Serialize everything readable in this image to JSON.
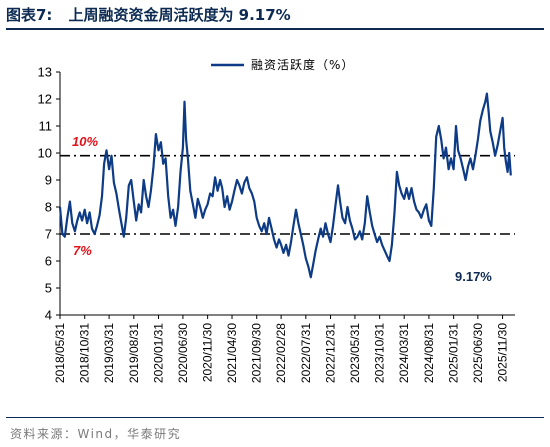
{
  "figure": {
    "number": "图表7:",
    "title": "上周融资资金周活跃度为 9.17%",
    "source": "资料来源：Wind，华泰研究"
  },
  "chart_data": {
    "type": "line",
    "title": "",
    "xlabel": "",
    "ylabel": "",
    "ylim": [
      4,
      13
    ],
    "yticks": [
      4,
      5,
      6,
      7,
      8,
      9,
      10,
      11,
      12,
      13
    ],
    "xticks": [
      "2018/05/31",
      "2018/10/31",
      "2019/03/31",
      "2019/08/31",
      "2020/01/31",
      "2020/06/30",
      "2020/11/30",
      "2021/04/30",
      "2021/09/30",
      "2022/02/28",
      "2022/07/31",
      "2022/12/31",
      "2023/05/31",
      "2023/10/31",
      "2024/03/31",
      "2024/08/31",
      "2025/01/31",
      "2025/06/30",
      "2025/11/30"
    ],
    "grid": false,
    "legend": "top-center",
    "series": [
      {
        "name": "融资活跃度（%）",
        "color": "#0d3b85",
        "points": [
          [
            "2018/05/31",
            8.0
          ],
          [
            "2018/06/15",
            7.0
          ],
          [
            "2018/06/30",
            6.9
          ],
          [
            "2018/07/15",
            7.6
          ],
          [
            "2018/07/31",
            8.2
          ],
          [
            "2018/08/15",
            7.4
          ],
          [
            "2018/08/31",
            7.1
          ],
          [
            "2018/09/15",
            7.5
          ],
          [
            "2018/09/30",
            7.8
          ],
          [
            "2018/10/15",
            7.5
          ],
          [
            "2018/10/31",
            7.9
          ],
          [
            "2018/11/15",
            7.4
          ],
          [
            "2018/11/30",
            7.8
          ],
          [
            "2018/12/15",
            7.2
          ],
          [
            "2018/12/31",
            7.0
          ],
          [
            "2019/01/15",
            7.3
          ],
          [
            "2019/01/31",
            7.7
          ],
          [
            "2019/02/15",
            8.4
          ],
          [
            "2019/02/28",
            9.6
          ],
          [
            "2019/03/15",
            10.1
          ],
          [
            "2019/03/31",
            9.4
          ],
          [
            "2019/04/15",
            9.9
          ],
          [
            "2019/04/30",
            8.9
          ],
          [
            "2019/05/15",
            8.5
          ],
          [
            "2019/05/31",
            7.9
          ],
          [
            "2019/06/15",
            7.4
          ],
          [
            "2019/06/30",
            6.9
          ],
          [
            "2019/07/15",
            7.6
          ],
          [
            "2019/07/31",
            8.8
          ],
          [
            "2019/08/15",
            9.0
          ],
          [
            "2019/08/31",
            8.2
          ],
          [
            "2019/09/15",
            7.5
          ],
          [
            "2019/09/30",
            8.1
          ],
          [
            "2019/10/15",
            7.8
          ],
          [
            "2019/10/31",
            9.0
          ],
          [
            "2019/11/15",
            8.4
          ],
          [
            "2019/11/30",
            8.0
          ],
          [
            "2019/12/15",
            8.6
          ],
          [
            "2019/12/31",
            9.5
          ],
          [
            "2020/01/15",
            10.7
          ],
          [
            "2020/01/31",
            10.1
          ],
          [
            "2020/02/15",
            10.4
          ],
          [
            "2020/02/29",
            9.6
          ],
          [
            "2020/03/15",
            9.8
          ],
          [
            "2020/03/31",
            8.4
          ],
          [
            "2020/04/15",
            7.6
          ],
          [
            "2020/04/30",
            7.9
          ],
          [
            "2020/05/15",
            7.3
          ],
          [
            "2020/05/31",
            8.0
          ],
          [
            "2020/06/15",
            9.3
          ],
          [
            "2020/06/30",
            10.2
          ],
          [
            "2020/07/10",
            11.9
          ],
          [
            "2020/07/20",
            10.5
          ],
          [
            "2020/07/31",
            9.8
          ],
          [
            "2020/08/15",
            8.6
          ],
          [
            "2020/08/31",
            8.1
          ],
          [
            "2020/09/15",
            7.6
          ],
          [
            "2020/09/30",
            8.3
          ],
          [
            "2020/10/15",
            8.0
          ],
          [
            "2020/10/31",
            7.6
          ],
          [
            "2020/11/15",
            7.9
          ],
          [
            "2020/11/30",
            8.1
          ],
          [
            "2020/12/15",
            8.5
          ],
          [
            "2020/12/31",
            8.4
          ],
          [
            "2021/01/15",
            9.1
          ],
          [
            "2021/01/31",
            8.6
          ],
          [
            "2021/02/15",
            9.0
          ],
          [
            "2021/02/28",
            8.7
          ],
          [
            "2021/03/15",
            8.0
          ],
          [
            "2021/03/31",
            8.4
          ],
          [
            "2021/04/15",
            7.9
          ],
          [
            "2021/04/30",
            8.2
          ],
          [
            "2021/05/15",
            8.6
          ],
          [
            "2021/05/31",
            9.0
          ],
          [
            "2021/06/15",
            8.8
          ],
          [
            "2021/06/30",
            8.5
          ],
          [
            "2021/07/15",
            8.9
          ],
          [
            "2021/07/31",
            9.1
          ],
          [
            "2021/08/15",
            8.7
          ],
          [
            "2021/08/31",
            8.5
          ],
          [
            "2021/09/15",
            8.2
          ],
          [
            "2021/09/30",
            7.6
          ],
          [
            "2021/10/15",
            7.3
          ],
          [
            "2021/10/31",
            7.1
          ],
          [
            "2021/11/15",
            7.4
          ],
          [
            "2021/11/30",
            7.0
          ],
          [
            "2021/12/15",
            7.6
          ],
          [
            "2021/12/31",
            7.2
          ],
          [
            "2022/01/15",
            6.8
          ],
          [
            "2022/01/31",
            6.5
          ],
          [
            "2022/02/15",
            6.8
          ],
          [
            "2022/02/28",
            6.6
          ],
          [
            "2022/03/15",
            6.3
          ],
          [
            "2022/03/31",
            6.6
          ],
          [
            "2022/04/15",
            6.2
          ],
          [
            "2022/04/30",
            6.7
          ],
          [
            "2022/05/15",
            7.3
          ],
          [
            "2022/05/31",
            7.9
          ],
          [
            "2022/06/15",
            7.4
          ],
          [
            "2022/06/30",
            7.0
          ],
          [
            "2022/07/15",
            6.6
          ],
          [
            "2022/07/31",
            6.1
          ],
          [
            "2022/08/15",
            5.8
          ],
          [
            "2022/08/31",
            5.4
          ],
          [
            "2022/09/15",
            5.9
          ],
          [
            "2022/09/30",
            6.4
          ],
          [
            "2022/10/15",
            6.8
          ],
          [
            "2022/10/31",
            7.2
          ],
          [
            "2022/11/15",
            6.9
          ],
          [
            "2022/11/30",
            7.4
          ],
          [
            "2022/12/15",
            7.0
          ],
          [
            "2022/12/31",
            6.7
          ],
          [
            "2023/01/15",
            7.3
          ],
          [
            "2023/01/31",
            8.1
          ],
          [
            "2023/02/15",
            8.8
          ],
          [
            "2023/02/28",
            8.2
          ],
          [
            "2023/03/15",
            7.6
          ],
          [
            "2023/03/31",
            7.4
          ],
          [
            "2023/04/15",
            8.0
          ],
          [
            "2023/04/30",
            7.5
          ],
          [
            "2023/05/15",
            7.2
          ],
          [
            "2023/05/31",
            6.8
          ],
          [
            "2023/06/15",
            6.9
          ],
          [
            "2023/06/30",
            7.1
          ],
          [
            "2023/07/15",
            6.8
          ],
          [
            "2023/07/31",
            7.4
          ],
          [
            "2023/08/15",
            8.4
          ],
          [
            "2023/08/31",
            7.8
          ],
          [
            "2023/09/15",
            7.3
          ],
          [
            "2023/09/30",
            7.0
          ],
          [
            "2023/10/15",
            6.7
          ],
          [
            "2023/10/31",
            6.9
          ],
          [
            "2023/11/15",
            6.6
          ],
          [
            "2023/11/30",
            6.4
          ],
          [
            "2023/12/15",
            6.2
          ],
          [
            "2023/12/31",
            6.0
          ],
          [
            "2024/01/15",
            6.6
          ],
          [
            "2024/01/31",
            7.8
          ],
          [
            "2024/02/15",
            9.3
          ],
          [
            "2024/02/29",
            8.8
          ],
          [
            "2024/03/15",
            8.5
          ],
          [
            "2024/03/31",
            8.3
          ],
          [
            "2024/04/15",
            8.7
          ],
          [
            "2024/04/30",
            8.3
          ],
          [
            "2024/05/15",
            8.7
          ],
          [
            "2024/05/31",
            8.2
          ],
          [
            "2024/06/15",
            7.9
          ],
          [
            "2024/06/30",
            7.8
          ],
          [
            "2024/07/15",
            7.6
          ],
          [
            "2024/07/31",
            7.9
          ],
          [
            "2024/08/15",
            8.1
          ],
          [
            "2024/08/31",
            7.5
          ],
          [
            "2024/09/15",
            7.3
          ],
          [
            "2024/09/30",
            8.7
          ],
          [
            "2024/10/15",
            10.6
          ],
          [
            "2024/10/31",
            11.0
          ],
          [
            "2024/11/15",
            10.5
          ],
          [
            "2024/11/30",
            9.8
          ],
          [
            "2024/12/15",
            10.2
          ],
          [
            "2024/12/31",
            9.4
          ],
          [
            "2025/01/15",
            9.8
          ],
          [
            "2025/01/31",
            9.4
          ],
          [
            "2025/02/15",
            11.0
          ],
          [
            "2025/02/28",
            10.1
          ],
          [
            "2025/03/15",
            9.8
          ],
          [
            "2025/03/31",
            9.4
          ],
          [
            "2025/04/15",
            9.0
          ],
          [
            "2025/04/30",
            9.5
          ],
          [
            "2025/05/15",
            9.8
          ],
          [
            "2025/05/31",
            9.4
          ],
          [
            "2025/06/15",
            9.9
          ],
          [
            "2025/06/30",
            10.5
          ],
          [
            "2025/07/15",
            11.2
          ],
          [
            "2025/07/31",
            11.6
          ],
          [
            "2025/08/15",
            11.9
          ],
          [
            "2025/08/25",
            12.2
          ],
          [
            "2025/09/05",
            11.5
          ],
          [
            "2025/09/15",
            10.8
          ],
          [
            "2025/09/30",
            10.4
          ],
          [
            "2025/10/15",
            9.9
          ],
          [
            "2025/10/31",
            10.3
          ],
          [
            "2025/11/15",
            10.8
          ],
          [
            "2025/11/30",
            11.3
          ],
          [
            "2025/12/10",
            10.2
          ],
          [
            "2025/12/20",
            9.7
          ],
          [
            "2025/12/31",
            9.3
          ],
          [
            "2026/01/10",
            10.0
          ],
          [
            "2026/01/20",
            9.17
          ]
        ]
      }
    ],
    "reference_lines": [
      {
        "value": 9.9,
        "label": "10%",
        "color": "#000000"
      },
      {
        "value": 7.0,
        "label": "7%",
        "color": "#000000"
      }
    ],
    "annotations": [
      {
        "text": "9.17%",
        "color": "#0d2b52"
      }
    ]
  }
}
